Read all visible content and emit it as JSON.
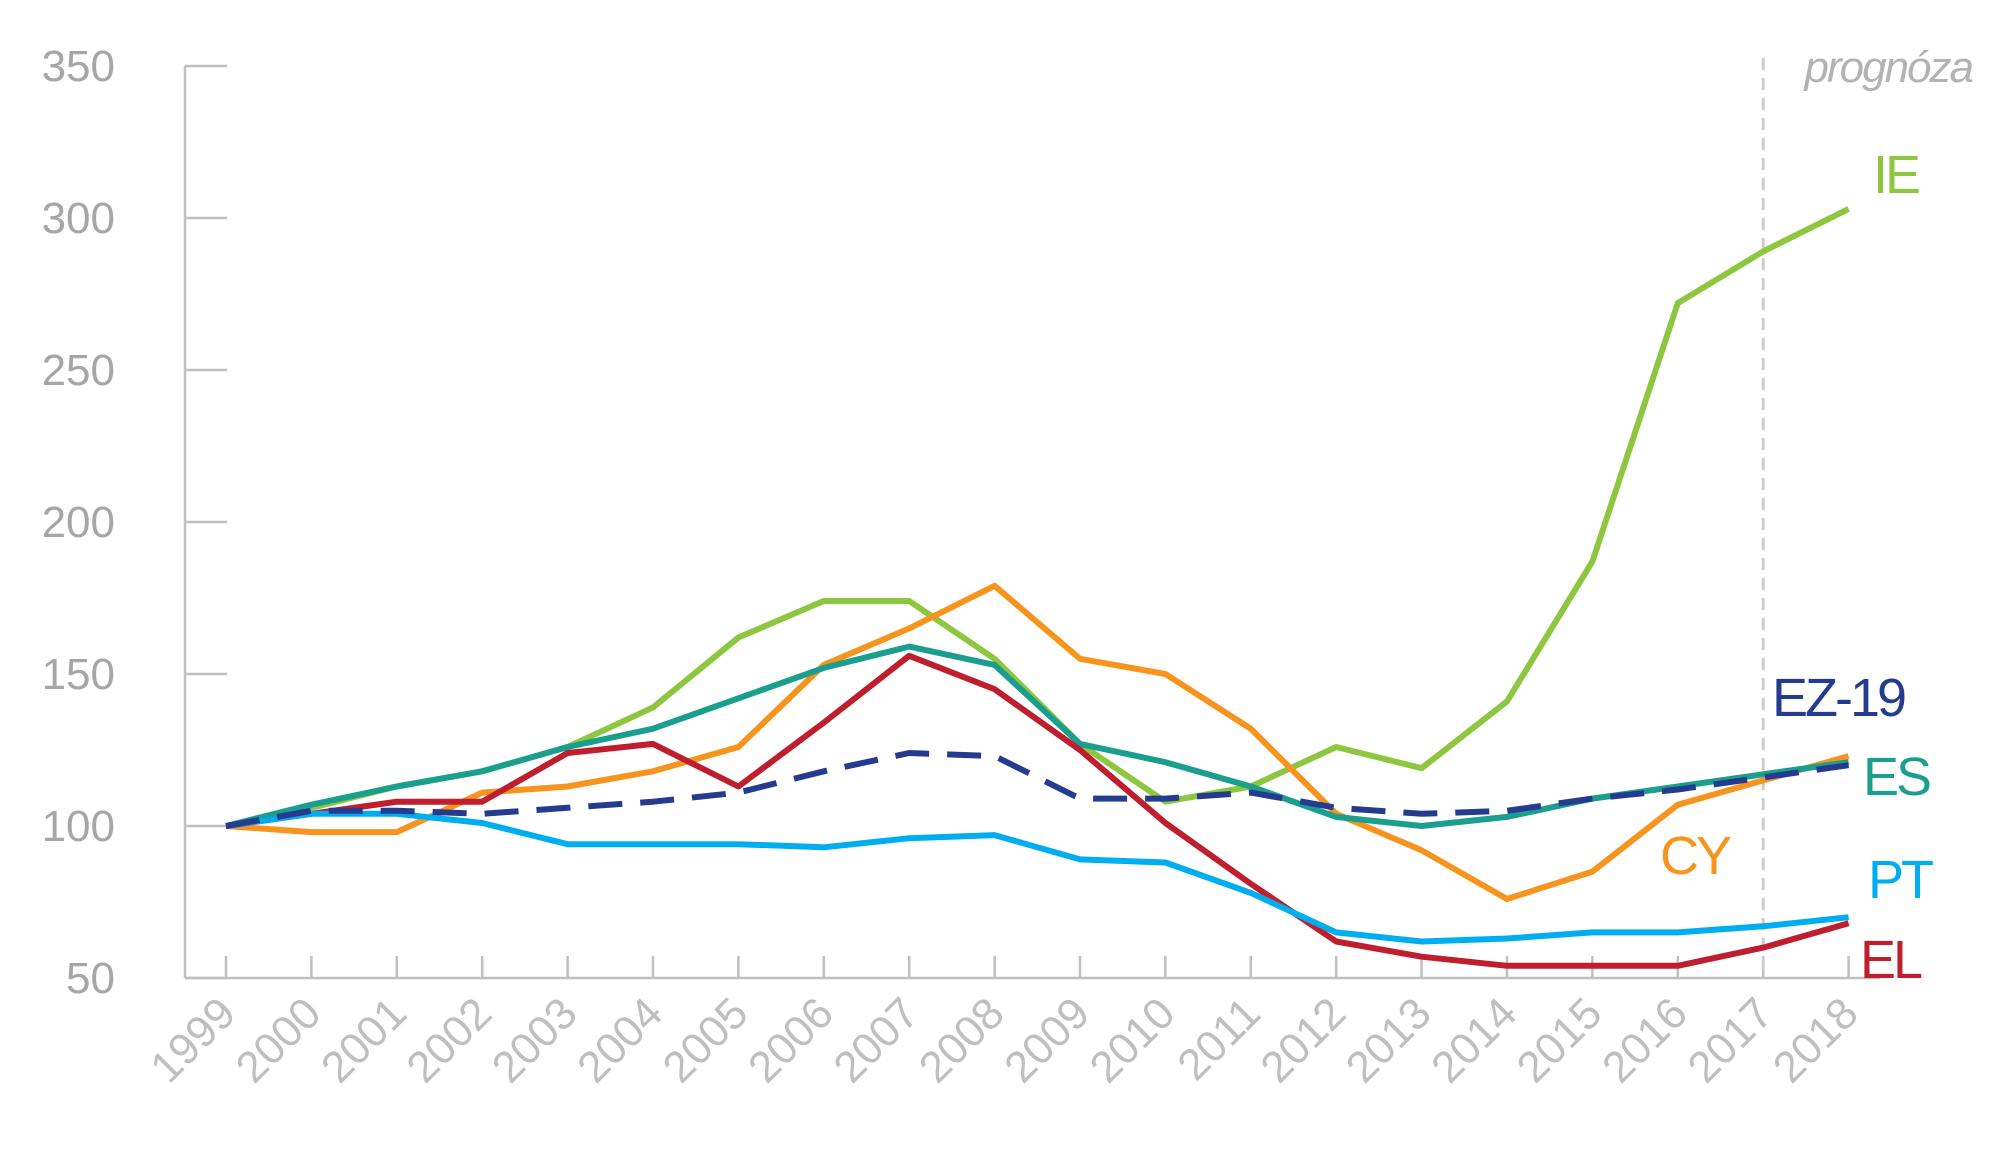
{
  "chart_data": {
    "type": "line",
    "x": [
      "1999",
      "2000",
      "2001",
      "2002",
      "2003",
      "2004",
      "2005",
      "2006",
      "2007",
      "2008",
      "2009",
      "2010",
      "2011",
      "2012",
      "2013",
      "2014",
      "2015",
      "2016",
      "2017",
      "2018"
    ],
    "ylim": [
      50,
      350
    ],
    "yticks": [
      50,
      100,
      150,
      200,
      250,
      300,
      350
    ],
    "grid": false,
    "forecast_label": "prognóza",
    "forecast_from": "2017",
    "series": [
      {
        "name": "IE",
        "color": "#8dc63f",
        "dashed": false,
        "values": [
          100,
          106,
          113,
          118,
          126,
          139,
          162,
          174,
          174,
          155,
          127,
          108,
          113,
          126,
          119,
          141,
          187,
          272,
          289,
          303
        ]
      },
      {
        "name": "CY",
        "color": "#f7941d",
        "dashed": false,
        "values": [
          100,
          98,
          98,
          111,
          113,
          118,
          126,
          153,
          165,
          179,
          155,
          150,
          132,
          104,
          92,
          76,
          85,
          107,
          115,
          123
        ]
      },
      {
        "name": "ES",
        "color": "#1a9f8f",
        "dashed": false,
        "values": [
          100,
          107,
          113,
          118,
          126,
          132,
          142,
          152,
          159,
          153,
          127,
          121,
          113,
          103,
          100,
          103,
          109,
          113,
          117,
          121
        ]
      },
      {
        "name": "EL",
        "color": "#be1e2d",
        "dashed": false,
        "values": [
          100,
          104,
          108,
          108,
          124,
          127,
          113,
          134,
          156,
          145,
          125,
          101,
          81,
          62,
          57,
          54,
          54,
          54,
          60,
          68
        ]
      },
      {
        "name": "PT",
        "color": "#00aeef",
        "dashed": false,
        "values": [
          100,
          104,
          104,
          101,
          94,
          94,
          94,
          93,
          96,
          97,
          89,
          88,
          78,
          65,
          62,
          63,
          65,
          65,
          67,
          70
        ]
      },
      {
        "name": "EZ-19",
        "color": "#253b8f",
        "dashed": true,
        "values": [
          100,
          105,
          105,
          104,
          106,
          108,
          111,
          118,
          124,
          123,
          109,
          109,
          111,
          106,
          104,
          105,
          109,
          112,
          116,
          120
        ]
      }
    ]
  }
}
